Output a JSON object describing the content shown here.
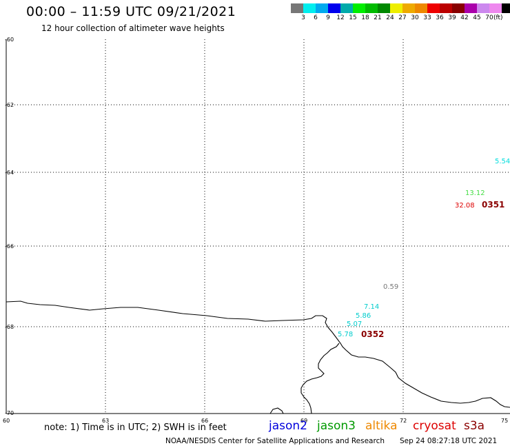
{
  "header": {
    "title": "00:00 – 11:59 UTC 09/21/2021",
    "subtitle": "12 hour collection of altimeter wave heights"
  },
  "color_scale": {
    "colors": [
      "#777777",
      "#00eeee",
      "#00aaee",
      "#0000ee",
      "#00aaaa",
      "#00ee00",
      "#00bb00",
      "#008800",
      "#eeee00",
      "#eeaa00",
      "#ee8800",
      "#ee0000",
      "#bb0000",
      "#880000",
      "#aa00aa",
      "#cc88ee",
      "#ee88ee",
      "#000000"
    ],
    "labels": [
      "3",
      "6",
      "9",
      "12",
      "15",
      "18",
      "21",
      "24",
      "27",
      "30",
      "33",
      "36",
      "39",
      "42",
      "45",
      "70"
    ],
    "unit": "(ft)"
  },
  "map": {
    "lat_labels": [
      "-60",
      "-62",
      "-64",
      "-66",
      "-68",
      "-70"
    ],
    "lon_labels": [
      "60",
      "63",
      "66",
      "69",
      "72",
      "75"
    ],
    "observations": [
      {
        "value": "5.54",
        "color": "#00dddd"
      },
      {
        "value": "13.12",
        "color": "#44dd44"
      },
      {
        "value": "32.08",
        "color": "#dd0000"
      },
      {
        "value": "0.59",
        "color": "#777777"
      },
      {
        "value": "7.14",
        "color": "#00cccc"
      },
      {
        "value": "5.86",
        "color": "#00cccc"
      },
      {
        "value": "5.07",
        "color": "#00cccc"
      },
      {
        "value": "5.78",
        "color": "#00cccc"
      }
    ],
    "pass_times": [
      "0351",
      "0352"
    ]
  },
  "footer": {
    "note": "note: 1) Time is in UTC; 2) SWH is in feet",
    "satellites": [
      {
        "name": "jason2",
        "color": "#0000dd"
      },
      {
        "name": "jason3",
        "color": "#009900"
      },
      {
        "name": "altika",
        "color": "#ee8800"
      },
      {
        "name": "cryosat",
        "color": "#dd0000"
      },
      {
        "name": "s3a",
        "color": "#8b0000"
      }
    ],
    "credit": "NOAA/NESDIS Center for Satellite Applications and Research",
    "timestamp": "Sep 24 08:27:18 UTC 2021"
  }
}
